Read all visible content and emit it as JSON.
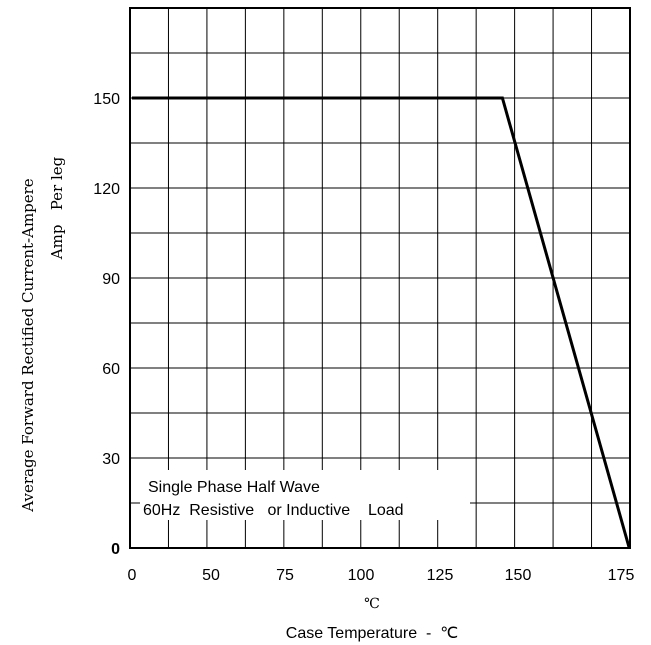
{
  "chart_data": {
    "type": "line",
    "ylabel": [
      "Average Forward Rectified Current-Ampere",
      "Amp   Per leg"
    ],
    "xlabel": "Case Temperature  -  ℃",
    "x_unit": "℃",
    "annotation": [
      "Single  Phase  Half  Wave",
      "60Hz  Resistive   or Inductive    Load"
    ],
    "x_ticks": [
      "0",
      "50",
      "75",
      "100",
      "125",
      "150",
      "175"
    ],
    "y_ticks": [
      "0",
      "30",
      "60",
      "90",
      "120",
      "150"
    ],
    "ylim": [
      0,
      180
    ],
    "grid": true,
    "series": [
      {
        "x_labels": [
          "0",
          "145",
          "177"
        ],
        "values": [
          150,
          150,
          0
        ]
      }
    ]
  }
}
